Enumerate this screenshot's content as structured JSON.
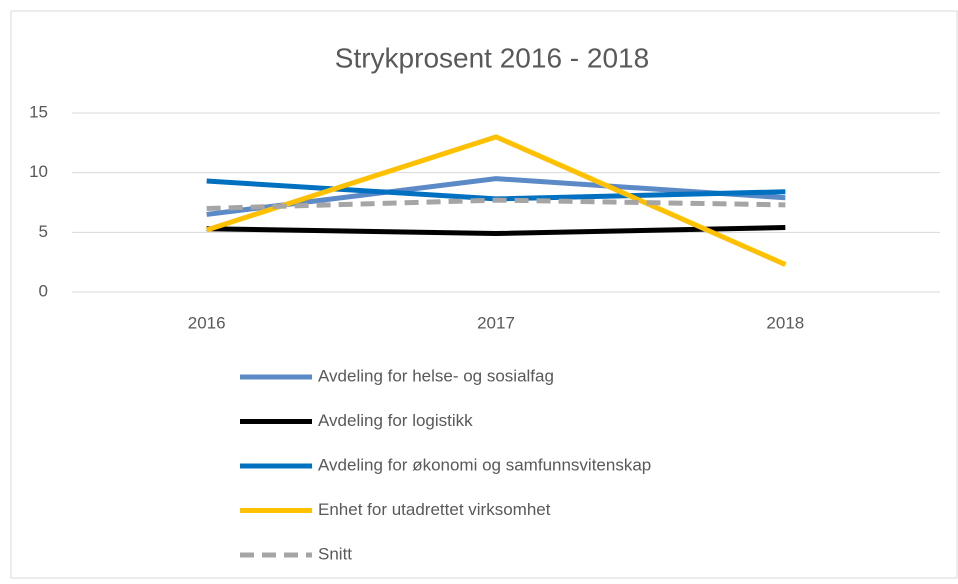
{
  "chart_data": {
    "type": "line",
    "title": "Strykprosent 2016 - 2018",
    "categories": [
      "2016",
      "2017",
      "2018"
    ],
    "series": [
      {
        "name": "Avdeling for helse- og sosialfag",
        "color": "#5b8ac6",
        "values": [
          6.5,
          9.5,
          7.9
        ]
      },
      {
        "name": "Avdeling for logistikk",
        "color": "#000000",
        "values": [
          5.3,
          4.9,
          5.4
        ]
      },
      {
        "name": "Avdeling for økonomi og samfunnsvitenskap",
        "color": "#0070c0",
        "values": [
          9.3,
          7.8,
          8.4
        ]
      },
      {
        "name": "Enhet for utadrettet virksomhet",
        "color": "#ffc000",
        "values": [
          5.2,
          13.0,
          2.3
        ]
      },
      {
        "name": "Snitt",
        "color": "#a5a5a5",
        "dashed": true,
        "values": [
          7.0,
          7.7,
          7.3
        ]
      }
    ],
    "ylim": [
      0,
      15
    ],
    "yticks": [
      0,
      5,
      10,
      15
    ],
    "grid": true,
    "legend": "bottom"
  }
}
